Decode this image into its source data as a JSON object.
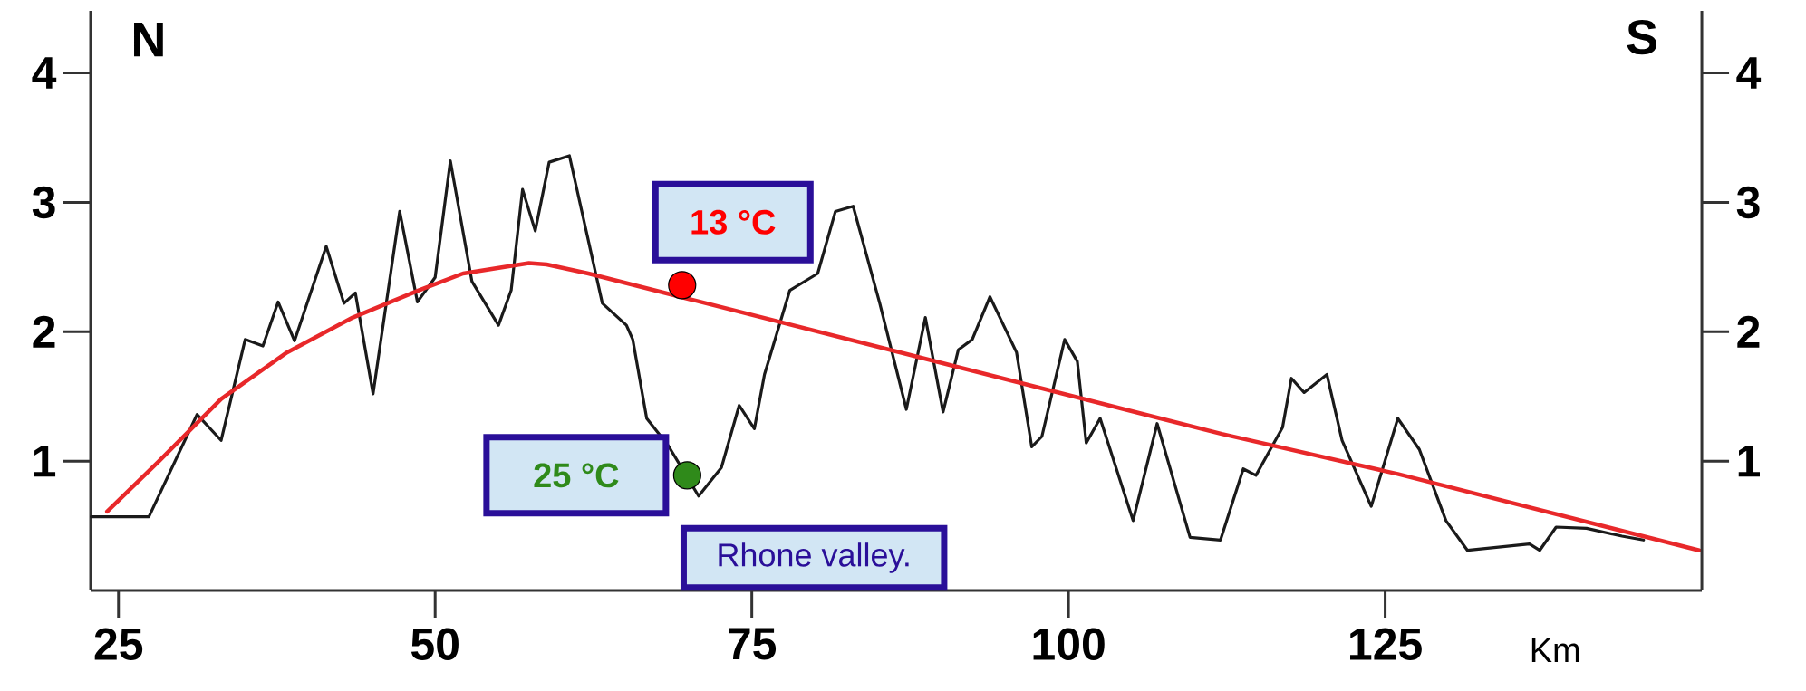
{
  "chart_data": {
    "type": "line",
    "xlabel": "Km",
    "xlim": [
      22.8,
      150
    ],
    "ylim": [
      0,
      4.48
    ],
    "xticks": [
      25,
      50,
      75,
      100,
      125
    ],
    "yticks": [
      1,
      2,
      3,
      4
    ],
    "y2lim": [
      0,
      4.48
    ],
    "y2ticks": [
      1,
      2,
      3,
      4
    ],
    "series": [
      {
        "color": "#1a1a1a",
        "marker": "none",
        "x": [
          22.85,
          27.4,
          31.2,
          33.1,
          35.0,
          36.4,
          37.6,
          38.9,
          41.4,
          42.8,
          43.7,
          45.1,
          47.2,
          48.6,
          50.0,
          51.2,
          52.9,
          55.0,
          56.0,
          56.9,
          57.9,
          59.0,
          60.6,
          63.2,
          65.1,
          65.6,
          66.7,
          68.4,
          70.8,
          72.6,
          74.0,
          75.2,
          76.0,
          78.0,
          80.2,
          81.6,
          83.0,
          85.1,
          87.2,
          88.7,
          90.1,
          91.3,
          92.4,
          93.8,
          95.9,
          97.1,
          97.9,
          99.7,
          100.7,
          101.4,
          102.5,
          105.1,
          107.0,
          109.6,
          112.0,
          113.8,
          114.8,
          116.9,
          117.6,
          118.6,
          120.4,
          121.6,
          123.9,
          126.0,
          127.7,
          129.8,
          131.5,
          136.4,
          137.2,
          138.5,
          140.9,
          143.7,
          145.4
        ],
        "values": [
          0.57,
          0.57,
          1.36,
          1.16,
          1.94,
          1.89,
          2.23,
          1.93,
          2.66,
          2.22,
          2.3,
          1.52,
          2.93,
          2.23,
          2.42,
          3.32,
          2.39,
          2.05,
          2.32,
          3.1,
          2.78,
          3.31,
          3.36,
          2.22,
          2.05,
          1.94,
          1.33,
          1.12,
          0.73,
          0.95,
          1.43,
          1.25,
          1.67,
          2.32,
          2.45,
          2.93,
          2.97,
          2.22,
          1.4,
          2.11,
          1.38,
          1.86,
          1.94,
          2.27,
          1.84,
          1.11,
          1.19,
          1.94,
          1.77,
          1.14,
          1.33,
          0.54,
          1.29,
          0.41,
          0.39,
          0.94,
          0.89,
          1.26,
          1.64,
          1.53,
          1.67,
          1.16,
          0.65,
          1.33,
          1.09,
          0.54,
          0.31,
          0.36,
          0.31,
          0.49,
          0.48,
          0.42,
          0.39
        ]
      },
      {
        "color": "#e8282a",
        "marker": "none",
        "x": [
          24.1,
          28.2,
          33.1,
          38.3,
          43.5,
          48.7,
          52.2,
          57.4,
          58.8,
          62.1,
          112.1,
          126.0,
          149.8
        ],
        "values": [
          0.61,
          1.0,
          1.48,
          1.84,
          2.11,
          2.32,
          2.45,
          2.53,
          2.52,
          2.45,
          1.21,
          0.9,
          0.31
        ]
      },
      {
        "type": "scatter",
        "name": "13 °C",
        "color": "#ff0000",
        "marker": "circle",
        "x": [
          69.5
        ],
        "values": [
          2.36
        ]
      },
      {
        "type": "scatter",
        "name": "25 °C",
        "color": "#2f8a1a",
        "marker": "circle",
        "x": [
          69.9
        ],
        "values": [
          0.89
        ]
      }
    ],
    "annotations": [
      {
        "text": "Rhone valley.",
        "x": 70.8,
        "y": 0.73
      },
      "N",
      "S"
    ]
  }
}
